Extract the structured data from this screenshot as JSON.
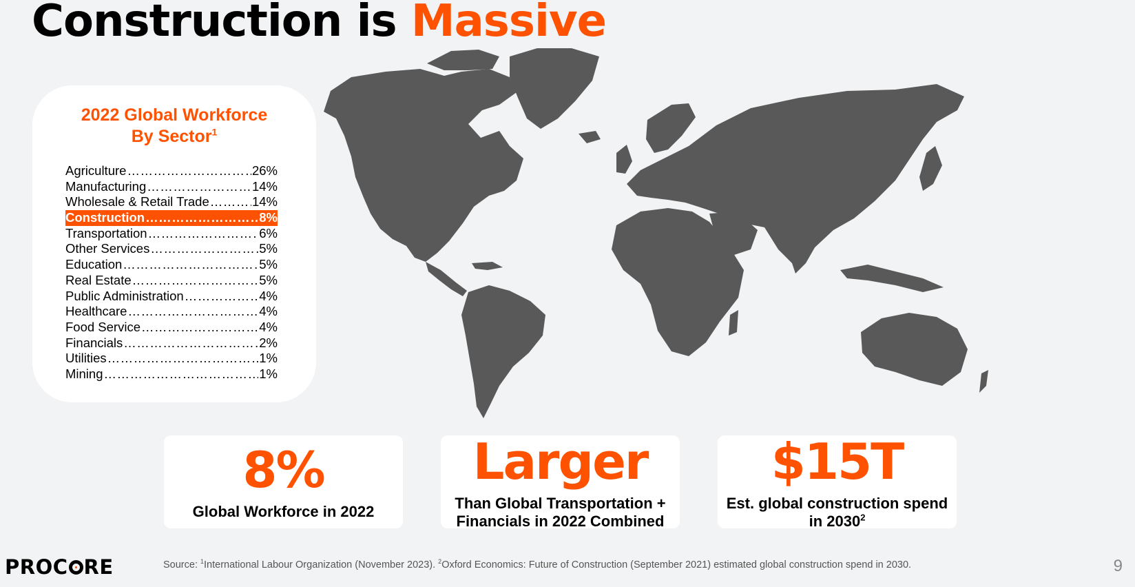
{
  "title": {
    "prefix": "Construction is ",
    "accent": "Massive"
  },
  "sector_card": {
    "title_line1": "2022 Global Workforce",
    "title_line2": "By Sector",
    "title_sup": "1",
    "rows": [
      {
        "label": "Agriculture",
        "value": "26%"
      },
      {
        "label": "Manufacturing",
        "value": "14%"
      },
      {
        "label": "Wholesale & Retail Trade",
        "value": "14%"
      },
      {
        "label": "Construction",
        "value": "8%"
      },
      {
        "label": "Transportation",
        "value": "6%"
      },
      {
        "label": "Other Services",
        "value": "5%"
      },
      {
        "label": "Education",
        "value": "5%"
      },
      {
        "label": "Real Estate",
        "value": "5%"
      },
      {
        "label": "Public Administration",
        "value": "4%"
      },
      {
        "label": "Healthcare",
        "value": "4%"
      },
      {
        "label": "Food Service",
        "value": "4%"
      },
      {
        "label": "Financials",
        "value": "2%"
      },
      {
        "label": "Utilities",
        "value": "1%"
      },
      {
        "label": "Mining",
        "value": "1%"
      }
    ]
  },
  "stats": [
    {
      "big": "8%",
      "desc_line1": "Global Workforce in 2022",
      "desc_line2": "",
      "desc_sup": ""
    },
    {
      "big": "Larger",
      "desc_line1": "Than Global Transportation +",
      "desc_line2": "Financials in 2022 Combined",
      "desc_sup": ""
    },
    {
      "big": "$15T",
      "desc_line1": "Est. global construction spend",
      "desc_line2": "in 2030",
      "desc_sup": "2"
    }
  ],
  "footer": {
    "logo_left": "PROC",
    "logo_right": "RE",
    "source_prefix": "Source: ",
    "source_sup1": "1",
    "source_text1": "International Labour Organization (November 2023).  ",
    "source_sup2": "2",
    "source_text2": "Oxford Economics: Future of Construction (September 2021) estimated global construction spend in 2030.",
    "page_number": "9"
  },
  "colors": {
    "accent": "#ff5200",
    "map_land": "#595959",
    "background": "#f2f3f5"
  }
}
